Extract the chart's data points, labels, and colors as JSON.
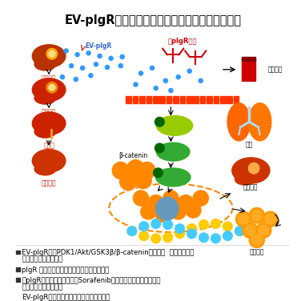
{
  "title": "EV-plgR是肝癌診斷和治療的潛在生物標記及靶點",
  "title_fontsize": 10.5,
  "title_color": "#000000",
  "background_color": "#ffffff",
  "bullet_points": [
    [
      "EV-plgR激活PDK1/Akt/GSK3β/β-catenin信號軸，  促進了腫瘤幹",
      "性和肝癌細胞腫瘤特性"
    ],
    [
      "plgR 在肝癌病人循環細胞外囊泡中表達升高"
    ],
    [
      "抗plgR抗體聯合索拉菲尼（Sorafenib）較單獨使用索拉菲尼能更",
      "有效抑制肝臟腫瘤生長"
    ],
    [
      "EV-plgR是潛在的肝癌生物標記和治療靶點"
    ]
  ],
  "bullet_color": "#000000",
  "bullet_fontsize": 6.2,
  "figsize": [
    3.81,
    3.76
  ],
  "dpi": 100,
  "liver_late_color": "#b83300",
  "liver_early_color": "#c03300",
  "liver_cirrhosis_color": "#cc2200",
  "liver_normal_color": "#cc3300",
  "label_red_color": "#cc2200",
  "label_normal_color": "#dd3300",
  "blue_dot_color": "#3399ff",
  "membrane_color": "#ff3300",
  "antibody_color": "#cc0000",
  "pdk1_color": "#99cc00",
  "akt1_color": "#33aa33",
  "gsk3_color": "#33aa33",
  "p_circle_color": "#006600",
  "orange_ball_color": "#ff8800",
  "blue_nucleus_color": "#6699bb",
  "dna_color1": "#ffcc00",
  "dna_color2": "#44ccff",
  "lung_color": "#ff6600",
  "tumor_liver_color": "#cc3300",
  "tumor_cluster_color": "#ff9900",
  "blood_tube_color": "#cc0000"
}
